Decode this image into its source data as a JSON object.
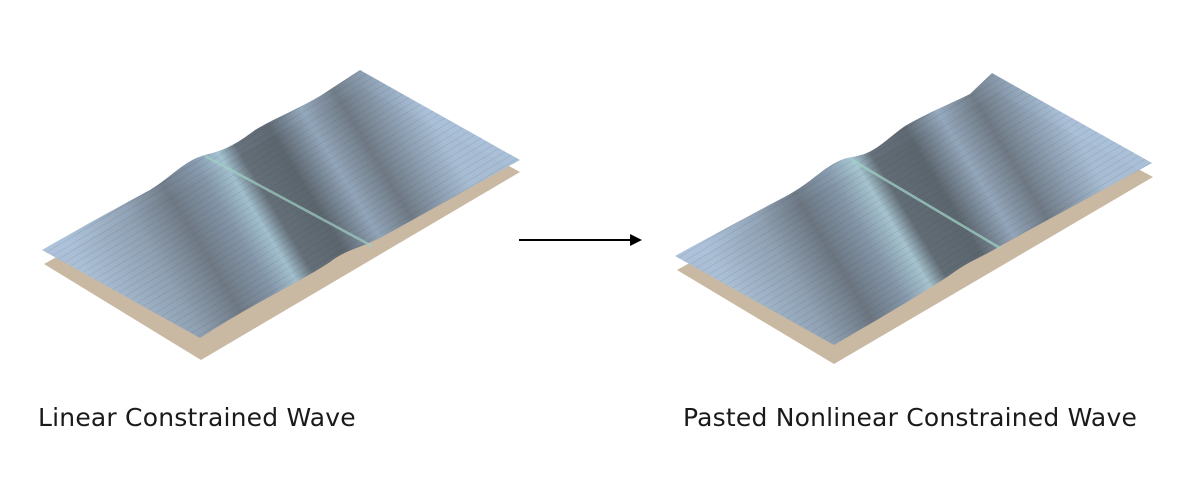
{
  "panels": [
    {
      "caption": "Linear Constrained Wave"
    },
    {
      "caption": "Pasted Nonlinear Constrained Wave"
    }
  ],
  "colors": {
    "seabed": "#c9b8a2",
    "water_light": "#a9bfd8",
    "water_dark": "#5f6b76",
    "crest_highlight": "#9fd0c4",
    "arrow": "#000000"
  },
  "arrow": {
    "direction": "right"
  }
}
